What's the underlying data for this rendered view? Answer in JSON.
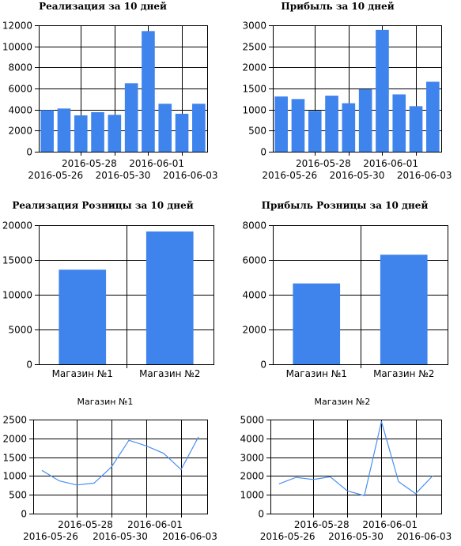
{
  "colors": {
    "bar": "#3f83ec",
    "line": "#4a8ff0",
    "grid": "#000000"
  },
  "charts": [
    {
      "id": "sales-10-days",
      "type": "bar",
      "title": "Реализация за 10 дней",
      "title_style": "serif",
      "ylim": [
        0,
        12000
      ],
      "yticks": [
        0,
        2000,
        4000,
        6000,
        8000,
        10000,
        12000
      ],
      "x_upper_labels": [
        "2016-05-28",
        "2016-06-01"
      ],
      "x_lower_labels": [
        "2016-05-26",
        "2016-05-30",
        "2016-06-03"
      ],
      "values": [
        3950,
        4100,
        3450,
        3750,
        3500,
        6500,
        11450,
        4550,
        3600,
        4550
      ]
    },
    {
      "id": "profit-10-days",
      "type": "bar",
      "title": "Прибыль за 10 дней",
      "title_style": "serif",
      "ylim": [
        0,
        3000
      ],
      "yticks": [
        0,
        500,
        1000,
        1500,
        2000,
        2500,
        3000
      ],
      "x_upper_labels": [
        "2016-05-28",
        "2016-06-01"
      ],
      "x_lower_labels": [
        "2016-05-26",
        "2016-05-30",
        "2016-06-03"
      ],
      "values": [
        1310,
        1250,
        970,
        1330,
        1150,
        1480,
        2890,
        1360,
        1080,
        1660
      ]
    },
    {
      "id": "retail-sales-10-days",
      "type": "bar",
      "title": "Реализация Розницы за 10 дней",
      "title_style": "serif",
      "ylim": [
        0,
        20000
      ],
      "yticks": [
        0,
        5000,
        10000,
        15000,
        20000
      ],
      "categories": [
        "Магазин №1",
        "Магазин №2"
      ],
      "values": [
        13600,
        19100
      ]
    },
    {
      "id": "retail-profit-10-days",
      "type": "bar",
      "title": "Прибыль Розницы за 10 дней",
      "title_style": "serif",
      "ylim": [
        0,
        8000
      ],
      "yticks": [
        0,
        2000,
        4000,
        6000,
        8000
      ],
      "categories": [
        "Магазин №1",
        "Магазин №2"
      ],
      "values": [
        4650,
        6300
      ]
    },
    {
      "id": "store-1-line",
      "type": "line",
      "title": "Магазин №1",
      "title_style": "sans",
      "ylim": [
        0,
        2500
      ],
      "yticks": [
        0,
        500,
        1000,
        1500,
        2000,
        2500
      ],
      "x_upper_labels": [
        "2016-05-28",
        "2016-06-01"
      ],
      "x_lower_labels": [
        "2016-05-26",
        "2016-05-30",
        "2016-06-03"
      ],
      "values": [
        1150,
        870,
        760,
        810,
        1240,
        1950,
        1800,
        1600,
        1170,
        2040
      ]
    },
    {
      "id": "store-2-line",
      "type": "line",
      "title": "Магазин №2",
      "title_style": "sans",
      "ylim": [
        0,
        5000
      ],
      "yticks": [
        0,
        1000,
        2000,
        3000,
        4000,
        5000
      ],
      "x_upper_labels": [
        "2016-05-28",
        "2016-06-01"
      ],
      "x_lower_labels": [
        "2016-05-26",
        "2016-05-30",
        "2016-06-03"
      ],
      "values": [
        1580,
        1930,
        1810,
        1960,
        1210,
        960,
        4900,
        1700,
        1060,
        2010
      ]
    }
  ]
}
